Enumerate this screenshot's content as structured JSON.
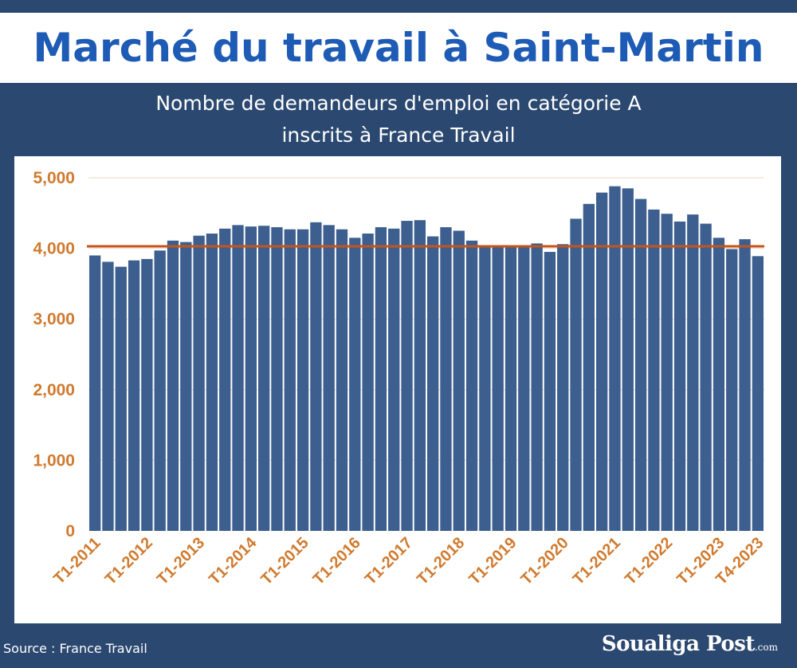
{
  "header": {
    "title": "Marché du travail à Saint-Martin",
    "subtitle_line1": "Nombre de demandeurs d'emploi en catégorie A",
    "subtitle_line2": "inscrits à France Travail"
  },
  "footer": {
    "source": "Source : France Travail",
    "brand_name": "Soualiga Post",
    "brand_tld": ".com"
  },
  "colors": {
    "background": "#2b4870",
    "title": "#1d5bb5",
    "bar": "#3d5f8f",
    "reference_line": "#c4541a",
    "tick_label": "#d07a2e"
  },
  "chart_data": {
    "type": "bar",
    "title": "Nombre de demandeurs d'emploi en catégorie A inscrits à France Travail",
    "xlabel": "",
    "ylabel": "",
    "ylim": [
      0,
      5000
    ],
    "y_ticks": [
      0,
      1000,
      2000,
      3000,
      4000,
      5000
    ],
    "y_tick_labels": [
      "0",
      "1,000",
      "2,000",
      "3,000",
      "4,000",
      "5,000"
    ],
    "grid": "horizontal",
    "reference_line": 4030,
    "categories": [
      "T1-2011",
      "T2-2011",
      "T3-2011",
      "T4-2011",
      "T1-2012",
      "T2-2012",
      "T3-2012",
      "T4-2012",
      "T1-2013",
      "T2-2013",
      "T3-2013",
      "T4-2013",
      "T1-2014",
      "T2-2014",
      "T3-2014",
      "T4-2014",
      "T1-2015",
      "T2-2015",
      "T3-2015",
      "T4-2015",
      "T1-2016",
      "T2-2016",
      "T3-2016",
      "T4-2016",
      "T1-2017",
      "T2-2017",
      "T3-2017",
      "T4-2017",
      "T1-2018",
      "T2-2018",
      "T3-2018",
      "T4-2018",
      "T1-2019",
      "T2-2019",
      "T3-2019",
      "T4-2019",
      "T1-2020",
      "T2-2020",
      "T3-2020",
      "T4-2020",
      "T1-2021",
      "T2-2021",
      "T3-2021",
      "T4-2021",
      "T1-2022",
      "T2-2022",
      "T3-2022",
      "T4-2022",
      "T1-2023",
      "T2-2023",
      "T3-2023",
      "T4-2023"
    ],
    "values": [
      3900,
      3810,
      3740,
      3830,
      3850,
      3970,
      4110,
      4090,
      4180,
      4210,
      4280,
      4330,
      4310,
      4320,
      4300,
      4270,
      4270,
      4370,
      4330,
      4270,
      4150,
      4210,
      4300,
      4280,
      4390,
      4400,
      4170,
      4300,
      4250,
      4110,
      4030,
      4040,
      4040,
      4040,
      4070,
      3950,
      4060,
      4420,
      4630,
      4790,
      4880,
      4850,
      4700,
      4550,
      4490,
      4380,
      4480,
      4350,
      4150,
      3990,
      4130,
      3890
    ],
    "x_tick_labels": [
      "T1-2011",
      "T1-2012",
      "T1-2013",
      "T1-2014",
      "T1-2015",
      "T1-2016",
      "T1-2017",
      "T1-2018",
      "T1-2019",
      "T1-2020",
      "T1-2021",
      "T1-2022",
      "T1-2023",
      "T4-2023"
    ]
  }
}
